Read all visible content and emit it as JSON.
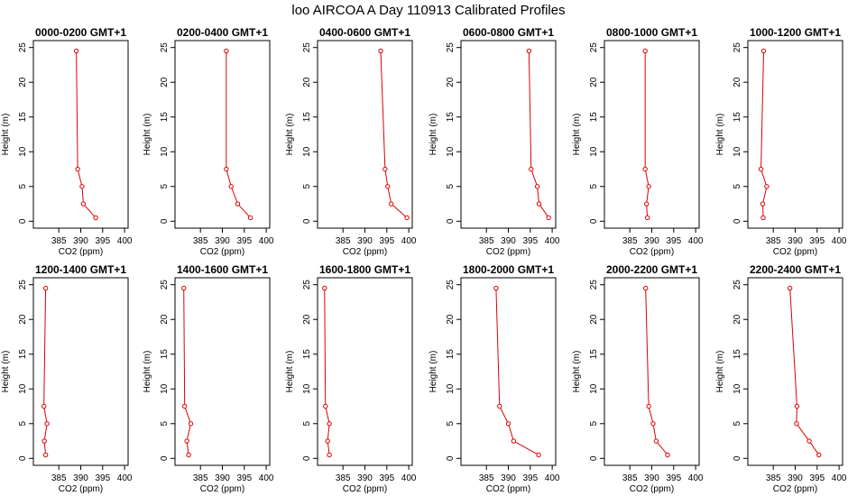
{
  "title": "loo AIRCOA A  Day 110913  Calibrated Profiles",
  "chart_data": [
    {
      "type": "line",
      "title": "0000-0200 GMT+1",
      "xlabel": "CO2 (ppm)",
      "ylabel": "Height (m)",
      "xlim": [
        380,
        400
      ],
      "ylim": [
        0,
        25
      ],
      "x_ticks": [
        385,
        390,
        395,
        400
      ],
      "y_ticks": [
        0,
        5,
        10,
        15,
        20,
        25
      ],
      "grid": false,
      "series": [
        {
          "x": [
            389.0,
            389.3,
            390.3,
            390.6,
            393.4
          ],
          "y": [
            24.5,
            7.5,
            5.0,
            2.5,
            0.5
          ]
        }
      ]
    },
    {
      "type": "line",
      "title": "0200-0400 GMT+1",
      "xlabel": "CO2 (ppm)",
      "ylabel": "Height (m)",
      "xlim": [
        380,
        400
      ],
      "ylim": [
        0,
        25
      ],
      "x_ticks": [
        385,
        390,
        395,
        400
      ],
      "y_ticks": [
        0,
        5,
        10,
        15,
        20,
        25
      ],
      "grid": false,
      "series": [
        {
          "x": [
            390.9,
            390.9,
            392.0,
            393.5,
            396.4
          ],
          "y": [
            24.5,
            7.5,
            5.0,
            2.5,
            0.5
          ]
        }
      ]
    },
    {
      "type": "line",
      "title": "0400-0600 GMT+1",
      "xlabel": "CO2 (ppm)",
      "ylabel": "Height (m)",
      "xlim": [
        380,
        400
      ],
      "ylim": [
        0,
        25
      ],
      "x_ticks": [
        385,
        390,
        395,
        400
      ],
      "y_ticks": [
        0,
        5,
        10,
        15,
        20,
        25
      ],
      "grid": false,
      "series": [
        {
          "x": [
            393.6,
            394.6,
            395.2,
            396.0,
            399.6
          ],
          "y": [
            24.5,
            7.5,
            5.0,
            2.5,
            0.5
          ]
        }
      ]
    },
    {
      "type": "line",
      "title": "0600-0800 GMT+1",
      "xlabel": "CO2 (ppm)",
      "ylabel": "Height (m)",
      "xlim": [
        380,
        400
      ],
      "ylim": [
        0,
        25
      ],
      "x_ticks": [
        385,
        390,
        395,
        400
      ],
      "y_ticks": [
        0,
        5,
        10,
        15,
        20,
        25
      ],
      "grid": false,
      "series": [
        {
          "x": [
            394.7,
            395.2,
            396.6,
            397.0,
            399.2
          ],
          "y": [
            24.5,
            7.5,
            5.0,
            2.5,
            0.5
          ]
        }
      ]
    },
    {
      "type": "line",
      "title": "0800-1000 GMT+1",
      "xlabel": "CO2 (ppm)",
      "ylabel": "Height (m)",
      "xlim": [
        380,
        400
      ],
      "ylim": [
        0,
        25
      ],
      "x_ticks": [
        385,
        390,
        395,
        400
      ],
      "y_ticks": [
        0,
        5,
        10,
        15,
        20,
        25
      ],
      "grid": false,
      "series": [
        {
          "x": [
            388.5,
            388.5,
            389.3,
            388.8,
            389.0
          ],
          "y": [
            24.5,
            7.5,
            5.0,
            2.5,
            0.5
          ]
        }
      ]
    },
    {
      "type": "line",
      "title": "1000-1200 GMT+1",
      "xlabel": "CO2 (ppm)",
      "ylabel": "Height (m)",
      "xlim": [
        380,
        400
      ],
      "ylim": [
        0,
        25
      ],
      "x_ticks": [
        385,
        390,
        395,
        400
      ],
      "y_ticks": [
        0,
        5,
        10,
        15,
        20,
        25
      ],
      "grid": false,
      "series": [
        {
          "x": [
            382.8,
            382.2,
            383.5,
            382.6,
            382.7
          ],
          "y": [
            24.5,
            7.5,
            5.0,
            2.5,
            0.5
          ]
        }
      ]
    },
    {
      "type": "line",
      "title": "1200-1400 GMT+1",
      "xlabel": "CO2 (ppm)",
      "ylabel": "Height (m)",
      "xlim": [
        380,
        400
      ],
      "ylim": [
        0,
        25
      ],
      "x_ticks": [
        385,
        390,
        395,
        400
      ],
      "y_ticks": [
        0,
        5,
        10,
        15,
        20,
        25
      ],
      "grid": false,
      "series": [
        {
          "x": [
            382.0,
            381.6,
            382.3,
            381.7,
            382.0
          ],
          "y": [
            24.5,
            7.5,
            5.0,
            2.5,
            0.5
          ]
        }
      ]
    },
    {
      "type": "line",
      "title": "1400-1600 GMT+1",
      "xlabel": "CO2 (ppm)",
      "ylabel": "Height (m)",
      "xlim": [
        380,
        400
      ],
      "ylim": [
        0,
        25
      ],
      "x_ticks": [
        385,
        390,
        395,
        400
      ],
      "y_ticks": [
        0,
        5,
        10,
        15,
        20,
        25
      ],
      "grid": false,
      "series": [
        {
          "x": [
            381.2,
            381.4,
            382.8,
            381.9,
            382.3
          ],
          "y": [
            24.5,
            7.5,
            5.0,
            2.5,
            0.5
          ]
        }
      ]
    },
    {
      "type": "line",
      "title": "1600-1800 GMT+1",
      "xlabel": "CO2 (ppm)",
      "ylabel": "Height (m)",
      "xlim": [
        380,
        400
      ],
      "ylim": [
        0,
        25
      ],
      "x_ticks": [
        385,
        390,
        395,
        400
      ],
      "y_ticks": [
        0,
        5,
        10,
        15,
        20,
        25
      ],
      "grid": false,
      "series": [
        {
          "x": [
            380.8,
            381.0,
            381.9,
            381.5,
            381.9
          ],
          "y": [
            24.5,
            7.5,
            5.0,
            2.5,
            0.5
          ]
        }
      ]
    },
    {
      "type": "line",
      "title": "1800-2000 GMT+1",
      "xlabel": "CO2 (ppm)",
      "ylabel": "Height (m)",
      "xlim": [
        380,
        400
      ],
      "ylim": [
        0,
        25
      ],
      "x_ticks": [
        385,
        390,
        395,
        400
      ],
      "y_ticks": [
        0,
        5,
        10,
        15,
        20,
        25
      ],
      "grid": false,
      "series": [
        {
          "x": [
            387.2,
            388.0,
            390.0,
            391.2,
            396.9
          ],
          "y": [
            24.5,
            7.5,
            5.0,
            2.5,
            0.5
          ]
        }
      ]
    },
    {
      "type": "line",
      "title": "2000-2200 GMT+1",
      "xlabel": "CO2 (ppm)",
      "ylabel": "Height (m)",
      "xlim": [
        380,
        400
      ],
      "ylim": [
        0,
        25
      ],
      "x_ticks": [
        385,
        390,
        395,
        400
      ],
      "y_ticks": [
        0,
        5,
        10,
        15,
        20,
        25
      ],
      "grid": false,
      "series": [
        {
          "x": [
            388.6,
            389.3,
            390.3,
            391.0,
            393.6
          ],
          "y": [
            24.5,
            7.5,
            5.0,
            2.5,
            0.5
          ]
        }
      ]
    },
    {
      "type": "line",
      "title": "2200-2400 GMT+1",
      "xlabel": "CO2 (ppm)",
      "ylabel": "Height (m)",
      "xlim": [
        380,
        400
      ],
      "ylim": [
        0,
        25
      ],
      "x_ticks": [
        385,
        390,
        395,
        400
      ],
      "y_ticks": [
        0,
        5,
        10,
        15,
        20,
        25
      ],
      "grid": false,
      "series": [
        {
          "x": [
            388.8,
            390.4,
            390.3,
            393.2,
            395.4
          ],
          "y": [
            24.5,
            7.5,
            5.0,
            2.5,
            0.5
          ]
        }
      ]
    }
  ],
  "colors": {
    "series": "#dd0000",
    "axis": "#000000",
    "background": "#ffffff"
  }
}
